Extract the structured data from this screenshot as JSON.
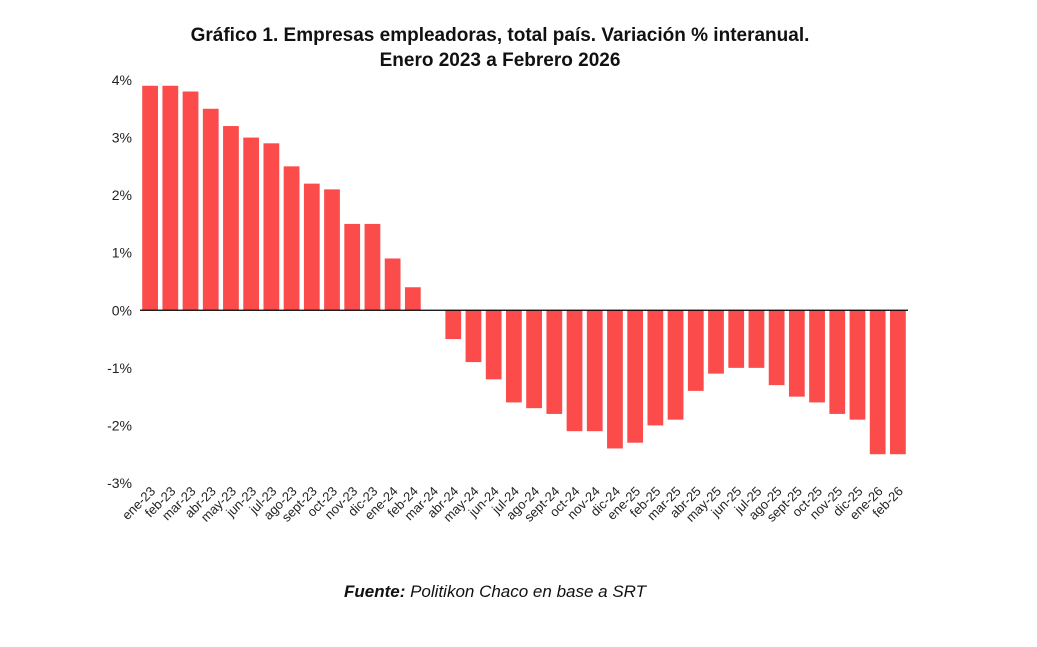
{
  "chart_data": {
    "type": "bar",
    "title": "Gráfico 1. Empresas empleadoras, total país. Variación % interanual.",
    "subtitle": "Enero 2023 a Febrero 2026",
    "categories": [
      "ene-23",
      "feb-23",
      "mar-23",
      "abr-23",
      "may-23",
      "jun-23",
      "jul-23",
      "ago-23",
      "sept-23",
      "oct-23",
      "nov-23",
      "dic-23",
      "ene-24",
      "feb-24",
      "mar-24",
      "abr-24",
      "may-24",
      "jun-24",
      "jul-24",
      "ago-24",
      "sept-24",
      "oct-24",
      "nov-24",
      "dic-24",
      "ene-25",
      "feb-25",
      "mar-25",
      "abr-25",
      "may-25",
      "jun-25",
      "jul-25",
      "ago-25",
      "sept-25",
      "oct-25",
      "nov-25",
      "dic-25",
      "ene-26",
      "feb-26"
    ],
    "values": [
      3.9,
      3.9,
      3.8,
      3.5,
      3.2,
      3.0,
      2.9,
      2.5,
      2.2,
      2.1,
      1.5,
      1.5,
      0.9,
      0.4,
      0.0,
      -0.5,
      -0.9,
      -1.2,
      -1.6,
      -1.7,
      -1.8,
      -2.1,
      -2.1,
      -2.4,
      -2.3,
      -2.0,
      -1.9,
      -1.4,
      -1.1,
      -1.0,
      -1.0,
      -1.3,
      -1.5,
      -1.6,
      -1.8,
      -1.9,
      -2.5,
      -2.5
    ],
    "ylim": [
      -3,
      4
    ],
    "yticks": [
      4,
      3,
      2,
      1,
      0,
      -1,
      -2,
      -3
    ],
    "ytick_labels": [
      "4%",
      "3%",
      "2%",
      "1%",
      "0%",
      "-1%",
      "-2%",
      "-3%"
    ],
    "bar_color": "#fb4b4b",
    "grid": false,
    "xlabel": "",
    "ylabel": ""
  },
  "source": {
    "label": "Fuente:",
    "text": "Politikon Chaco en base a SRT"
  }
}
